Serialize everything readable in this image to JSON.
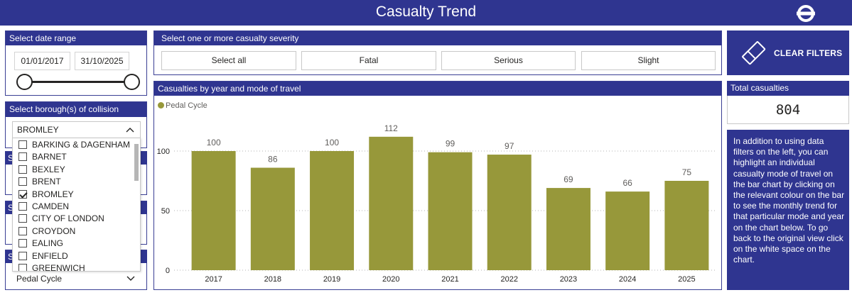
{
  "header": {
    "title": "Casualty Trend",
    "logo_icon": "tfl-roundel-icon"
  },
  "date_range": {
    "title": "Select date range",
    "start": "01/01/2017",
    "end": "31/10/2025"
  },
  "severity": {
    "title": "Select one or more casualty severity",
    "options": [
      "Select all",
      "Fatal",
      "Serious",
      "Slight"
    ]
  },
  "clear_filters": {
    "label": "CLEAR FILTERS",
    "icon": "eraser-icon"
  },
  "total": {
    "title": "Total casualties",
    "value": "804"
  },
  "info": {
    "text": "In addition to using data filters on the left, you can highlight an individual casualty mode of travel on the bar chart by clicking on the relevant colour on the bar to see the monthly trend for that particular mode and year on the chart below. To go back to the original view click on the white space on the chart."
  },
  "borough": {
    "title": "Select borough(s) of collision",
    "selected": "BROMLEY",
    "items": [
      {
        "label": "BARKING & DAGENHAM",
        "checked": false
      },
      {
        "label": "BARNET",
        "checked": false
      },
      {
        "label": "BEXLEY",
        "checked": false
      },
      {
        "label": "BRENT",
        "checked": false
      },
      {
        "label": "BROMLEY",
        "checked": true
      },
      {
        "label": "CAMDEN",
        "checked": false
      },
      {
        "label": "CITY OF LONDON",
        "checked": false
      },
      {
        "label": "CROYDON",
        "checked": false
      },
      {
        "label": "EALING",
        "checked": false
      },
      {
        "label": "ENFIELD",
        "checked": false
      },
      {
        "label": "GREENWICH",
        "checked": false
      }
    ],
    "hidden_panel_prefix": "S"
  },
  "mode": {
    "selected": "Pedal Cycle"
  },
  "chart_data": {
    "type": "bar",
    "title": "Casualties by year and mode of travel",
    "series": [
      {
        "name": "Pedal Cycle",
        "color": "#97983a",
        "values": [
          100,
          86,
          100,
          112,
          99,
          97,
          69,
          66,
          75
        ]
      }
    ],
    "categories": [
      "2017",
      "2018",
      "2019",
      "2020",
      "2021",
      "2022",
      "2023",
      "2024",
      "2025"
    ],
    "yticks": [
      0,
      50,
      100
    ],
    "ylim": [
      0,
      112
    ],
    "legend": "top-left",
    "grid": "dotted"
  }
}
